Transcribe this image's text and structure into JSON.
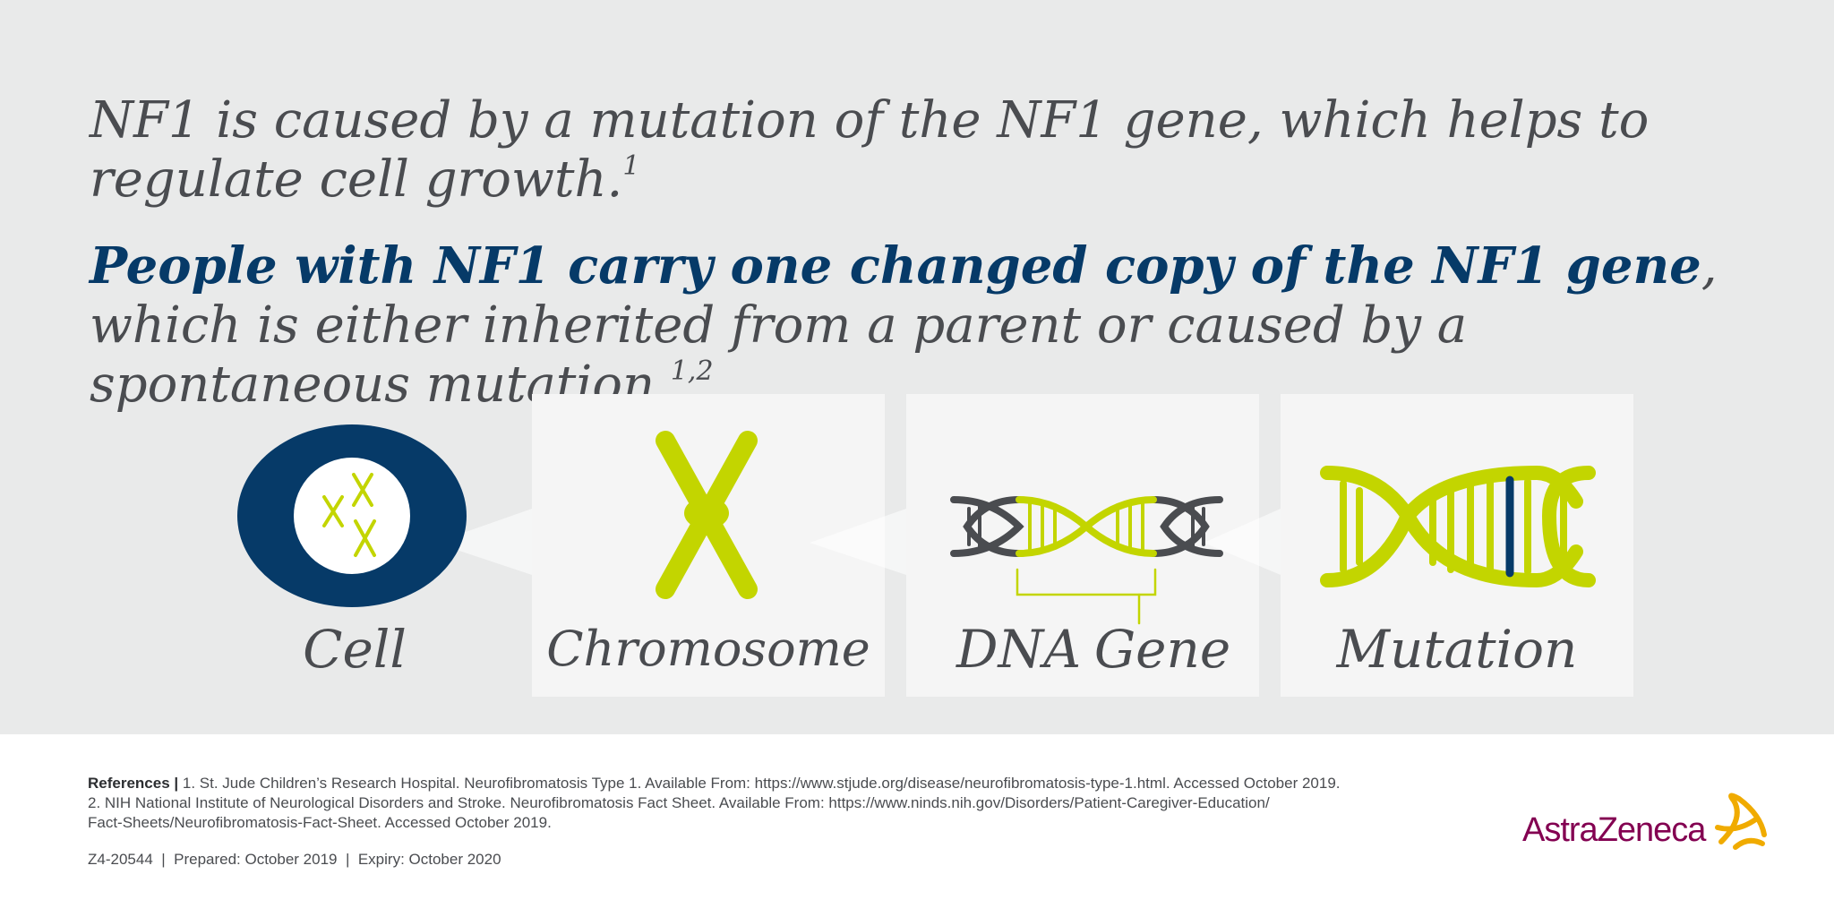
{
  "headline1": {
    "text": "NF1 is caused by a mutation of the NF1 gene, which helps to regulate cell growth.",
    "ref": "1"
  },
  "headline2": {
    "strong": "People with NF1 carry one changed copy of the NF1 gene",
    "rest": ", which is either inherited from a parent or caused by a spontaneous mutation.",
    "ref": "1,2"
  },
  "diagram": {
    "cell_label": "Cell",
    "chromosome_label": "Chromosome",
    "dna_label": "DNA",
    "gene_label": "Gene",
    "mutation_label": "Mutation"
  },
  "references": {
    "heading": "References |",
    "line1": " 1. St. Jude Children’s Research Hospital. Neurofibromatosis Type 1. Available From: https://www.stjude.org/disease/neurofibromatosis-type-1.html. Accessed October 2019.",
    "line2": "2. NIH National Institute of Neurological Disorders and Stroke. Neurofibromatosis Fact Sheet. Available From: https://www.ninds.nih.gov/Disorders/Patient-Caregiver-Education/",
    "line3": "Fact-Sheets/Neurofibromatosis-Fact-Sheet. Accessed October 2019."
  },
  "meta": {
    "code": "Z4-20544",
    "sep1": "|",
    "prepared": "Prepared: October 2019",
    "sep2": "|",
    "expiry": "Expiry: October 2020"
  },
  "logo": {
    "text": "AstraZeneca"
  },
  "colors": {
    "navy": "#063a68",
    "lime": "#c3d500",
    "dark_gray": "#4a4c50",
    "background": "#e9eaea",
    "brand": "#830051",
    "logo_accent": "#f0ab00"
  }
}
